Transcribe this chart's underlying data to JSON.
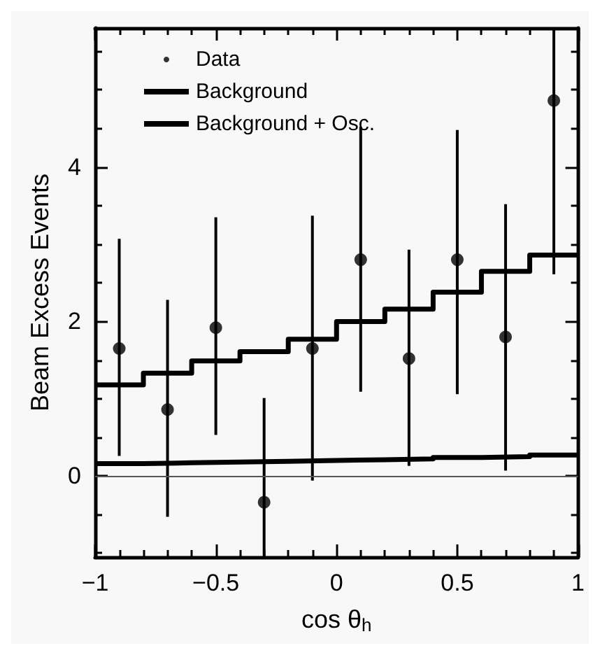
{
  "chart_data": {
    "type": "scatter",
    "xlabel": "cos θ$_{h}$",
    "ylabel": "Beam Excess Events",
    "xlim": [
      -1,
      1
    ],
    "ylim": [
      -1.05,
      5.8
    ],
    "xticks": [
      {
        "value": -1,
        "label": "−1"
      },
      {
        "value": -0.9,
        "label": null
      },
      {
        "value": -0.8,
        "label": null
      },
      {
        "value": -0.7,
        "label": null
      },
      {
        "value": -0.6,
        "label": null
      },
      {
        "value": -0.5,
        "label": "−0.5"
      },
      {
        "value": -0.4,
        "label": null
      },
      {
        "value": -0.3,
        "label": null
      },
      {
        "value": -0.2,
        "label": null
      },
      {
        "value": -0.1,
        "label": null
      },
      0,
      {
        "value": 0.1,
        "label": null
      },
      {
        "value": 0.2,
        "label": null
      },
      {
        "value": 0.3,
        "label": null
      },
      {
        "value": 0.4,
        "label": null
      },
      0.5,
      {
        "value": 0.6,
        "label": null
      },
      {
        "value": 0.7,
        "label": null
      },
      {
        "value": 0.8,
        "label": null
      },
      {
        "value": 0.9,
        "label": null
      },
      1
    ],
    "yticks": [
      {
        "value": -1,
        "label": null
      },
      {
        "value": -0.5,
        "label": null
      },
      0,
      {
        "value": 0.5,
        "label": null
      },
      {
        "value": 1,
        "label": null
      },
      {
        "value": 1.5,
        "label": null
      },
      2,
      {
        "value": 2.5,
        "label": null
      },
      {
        "value": 3,
        "label": null
      },
      {
        "value": 3.5,
        "label": null
      },
      4,
      {
        "value": 4.5,
        "label": null
      },
      {
        "value": 5,
        "label": null
      },
      {
        "value": 5.5,
        "label": null
      }
    ],
    "legend": "top left",
    "grid": false,
    "ref_lines": [
      {
        "axis": "y",
        "value": 0,
        "color": "#555555"
      }
    ],
    "series": [
      {
        "name": "Data",
        "color": "#000000",
        "marker": "circle",
        "x": [
          -0.9,
          -0.7,
          -0.5,
          -0.3,
          -0.1,
          0.1,
          0.3,
          0.5,
          0.7,
          0.9
        ],
        "values": [
          1.65,
          0.86,
          1.92,
          -0.34,
          1.65,
          2.8,
          1.52,
          2.8,
          1.8,
          4.86
        ],
        "errors": [
          [
            0.26,
            3.07
          ],
          [
            -0.53,
            2.28
          ],
          [
            0.53,
            3.35
          ],
          [
            -1.05,
            1.01
          ],
          [
            -0.06,
            3.37
          ],
          [
            1.09,
            4.52
          ],
          [
            0.13,
            2.93
          ],
          [
            1.06,
            4.48
          ],
          [
            0.07,
            3.52
          ],
          [
            2.61,
            5.8
          ]
        ]
      },
      {
        "name": "Background",
        "type": "step",
        "color": "#000000",
        "marker": "none",
        "x": [
          -1,
          -0.8,
          -0.6,
          -0.4,
          -0.2,
          0,
          0.2,
          0.4,
          0.6,
          0.8,
          1
        ],
        "values": [
          0.16,
          0.17,
          0.18,
          0.19,
          0.2,
          0.21,
          0.22,
          0.24,
          0.25,
          0.27,
          0.27
        ]
      },
      {
        "name": "Background + Osc.",
        "type": "step",
        "color": "#000000",
        "marker": "none",
        "x": [
          -1,
          -0.8,
          -0.6,
          -0.4,
          -0.2,
          0,
          0.2,
          0.4,
          0.6,
          0.8,
          1
        ],
        "values": [
          1.18,
          1.33,
          1.49,
          1.61,
          1.77,
          2.0,
          2.16,
          2.38,
          2.65,
          2.86,
          2.86
        ]
      }
    ]
  }
}
